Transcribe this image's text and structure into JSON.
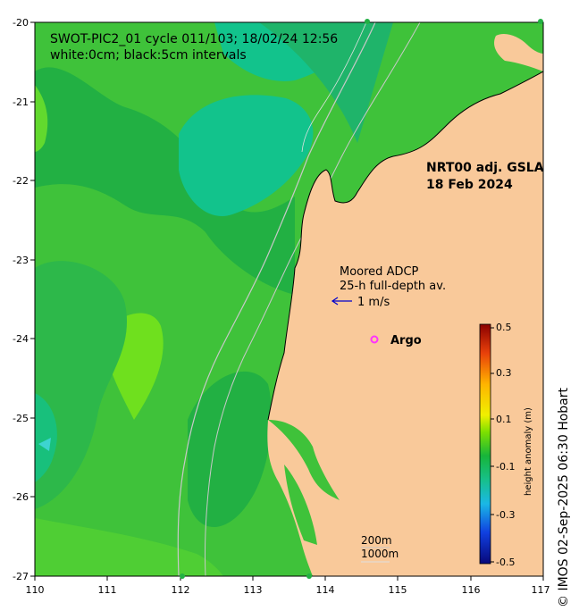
{
  "map": {
    "title_line1": "SWOT-PIC2_01 cycle 011/103; 18/02/24 12:56",
    "title_line2": "white:0cm; black:5cm intervals",
    "product_line1": "NRT00 adj. GSLA",
    "product_line2": "18 Feb 2024",
    "adcp_line1": "Moored ADCP",
    "adcp_line2": "25-h full-depth av.",
    "adcp_scale": "1 m/s",
    "argo_label": "Argo",
    "depth_label_1": "200m",
    "depth_label_2": "1000m",
    "credit": "© IMOS 02-Sep-2025 06:30 Hobart",
    "x_ticks": [
      "110",
      "111",
      "112",
      "113",
      "114",
      "115",
      "116",
      "117"
    ],
    "y_ticks": [
      "-20",
      "-21",
      "-22",
      "-23",
      "-24",
      "-25",
      "-26",
      "-27"
    ],
    "lon_range": [
      110,
      117
    ],
    "lat_range": [
      -27,
      -20
    ],
    "colors": {
      "land": "#f9c99a",
      "ocean_base": "#3fc23a",
      "ocean_dark": "#22b043",
      "ocean_light": "#62d92e",
      "ocean_cyan": "#12c38c",
      "argo_marker": "#ff33ff",
      "adcp_arrow": "#0000cc"
    }
  },
  "colorbar": {
    "label": "height anomaly (m)",
    "ticks": [
      "0.5",
      "0.3",
      "0.1",
      "-0.1",
      "-0.3",
      "-0.5"
    ],
    "range": [
      -0.5,
      0.5
    ]
  }
}
